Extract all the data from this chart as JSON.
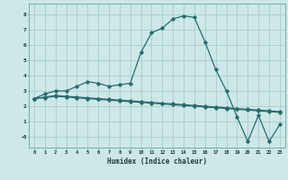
{
  "xlabel": "Humidex (Indice chaleur)",
  "bg_color": "#cde8e8",
  "grid_color": "#a8cccc",
  "line_color": "#2a6b6b",
  "xlim": [
    -0.5,
    23.5
  ],
  "ylim": [
    -0.7,
    8.7
  ],
  "xtick_labels": [
    "0",
    "1",
    "2",
    "3",
    "4",
    "5",
    "6",
    "7",
    "8",
    "9",
    "10",
    "11",
    "12",
    "13",
    "14",
    "15",
    "16",
    "17",
    "18",
    "19",
    "20",
    "21",
    "22",
    "23"
  ],
  "ytick_labels": [
    "-0",
    "1",
    "2",
    "3",
    "4",
    "5",
    "6",
    "7",
    "8"
  ],
  "ytick_values": [
    0,
    1,
    2,
    3,
    4,
    5,
    6,
    7,
    8
  ],
  "series1_x": [
    0,
    1,
    2,
    3,
    4,
    5,
    6,
    7,
    8,
    9,
    10,
    11,
    12,
    13,
    14,
    15,
    16,
    17,
    18,
    19,
    20,
    21,
    22,
    23
  ],
  "series1_y": [
    2.5,
    2.8,
    3.0,
    3.0,
    3.3,
    3.6,
    3.5,
    3.3,
    3.4,
    3.5,
    5.5,
    6.8,
    7.1,
    7.7,
    7.9,
    7.8,
    6.2,
    4.4,
    3.0,
    1.3,
    -0.3,
    1.4,
    -0.3,
    0.8
  ],
  "series2_x": [
    0,
    1,
    2,
    3,
    4,
    5,
    6,
    7,
    8,
    9,
    10,
    11,
    12,
    13,
    14,
    15,
    16,
    17,
    18,
    19,
    20,
    21,
    22,
    23
  ],
  "series2_y": [
    2.5,
    2.6,
    2.7,
    2.65,
    2.6,
    2.55,
    2.5,
    2.45,
    2.4,
    2.35,
    2.3,
    2.25,
    2.2,
    2.15,
    2.1,
    2.05,
    2.0,
    1.95,
    1.9,
    1.85,
    1.8,
    1.75,
    1.7,
    1.65
  ],
  "series3_x": [
    0,
    1,
    2,
    3,
    4,
    5,
    6,
    7,
    8,
    9,
    10,
    11,
    12,
    13,
    14,
    15,
    16,
    17,
    18,
    19,
    20,
    21,
    22,
    23
  ],
  "series3_y": [
    2.5,
    2.55,
    2.65,
    2.6,
    2.55,
    2.5,
    2.45,
    2.4,
    2.35,
    2.3,
    2.25,
    2.2,
    2.15,
    2.1,
    2.05,
    2.0,
    1.95,
    1.9,
    1.85,
    1.8,
    1.75,
    1.7,
    1.65,
    1.6
  ]
}
